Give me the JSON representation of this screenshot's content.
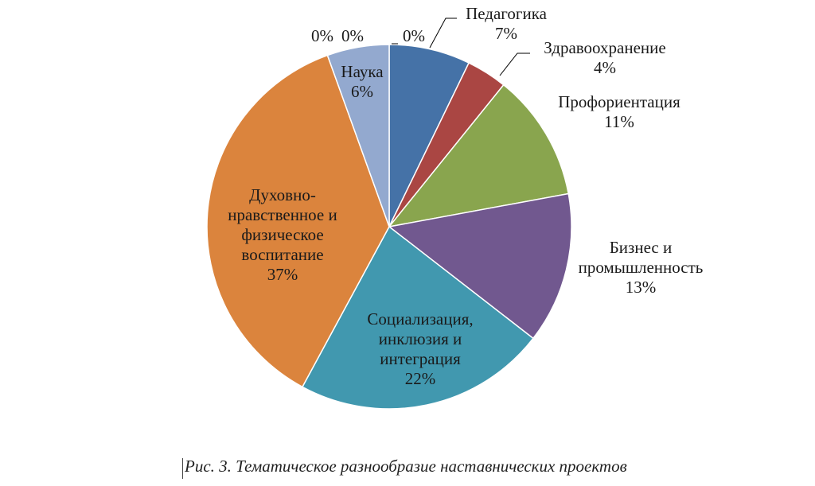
{
  "chart_data": {
    "type": "pie",
    "title": "",
    "slices": [
      {
        "label": [
          "Педагогика"
        ],
        "pct": "7%",
        "value": 7.2,
        "color": "#4572a7"
      },
      {
        "label": [
          "Здравоохранение"
        ],
        "pct": "4%",
        "value": 3.6,
        "color": "#aa4643"
      },
      {
        "label": [
          "Профориентация"
        ],
        "pct": "11%",
        "value": 11.3,
        "color": "#89a54e"
      },
      {
        "label": [
          "Бизнес и",
          "промышленность"
        ],
        "pct": "13%",
        "value": 13.4,
        "color": "#71588f"
      },
      {
        "label": [
          "Социализация,",
          "инклюзия и",
          "интеграция"
        ],
        "pct": "22%",
        "value": 22.4,
        "color": "#4198af"
      },
      {
        "label": [
          "Духовно-",
          "нравственное и",
          "физическое",
          "воспитание"
        ],
        "pct": "37%",
        "value": 36.6,
        "color": "#db843d"
      },
      {
        "label": [
          "Наука"
        ],
        "pct": "6%",
        "value": 5.5,
        "color": "#93a9cf"
      },
      {
        "label": [],
        "pct": "0%",
        "value": 0,
        "color": "#b9cd96"
      },
      {
        "label": [],
        "pct": "0%",
        "value": 0,
        "color": "#a99bbd"
      },
      {
        "label": [],
        "pct": "0%",
        "value": 0,
        "color": "#80699b"
      }
    ]
  },
  "caption": "Рис. 3. Тематическое разнообразие наставнических проектов"
}
